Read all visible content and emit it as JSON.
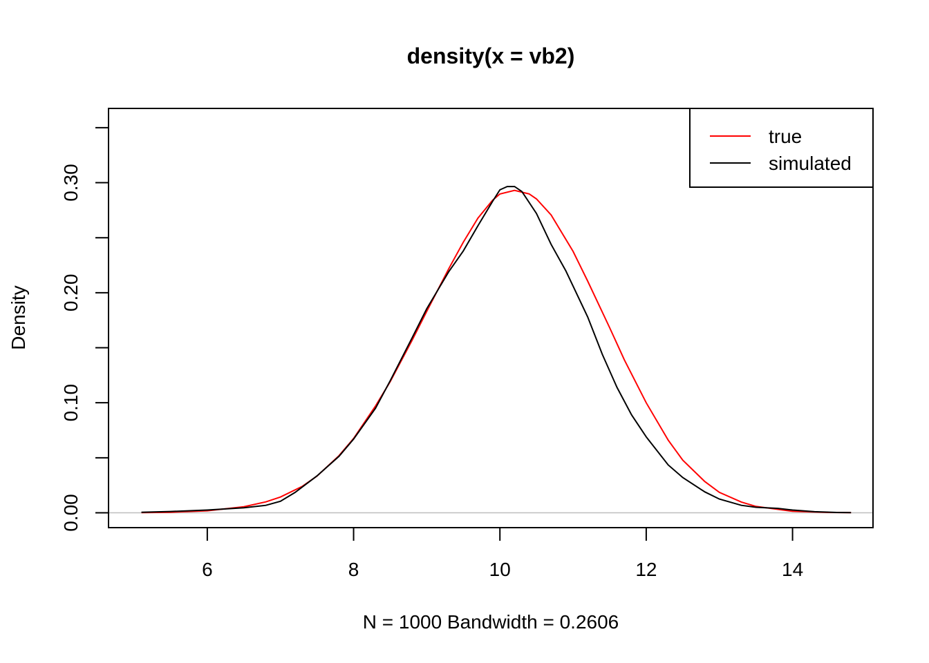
{
  "chart_data": {
    "type": "line",
    "title": "density(x = vb2)",
    "xlabel": "N = 1000   Bandwidth = 0.2606",
    "ylabel": "Density",
    "xlim": [
      4.65,
      15.1
    ],
    "ylim": [
      -0.0135,
      0.3675
    ],
    "x_ticks": [
      6,
      8,
      10,
      12,
      14
    ],
    "x_tick_labels": [
      "6",
      "8",
      "10",
      "12",
      "14"
    ],
    "y_ticks": [
      0,
      0.05,
      0.1,
      0.15,
      0.2,
      0.25,
      0.3,
      0.35
    ],
    "y_tick_labels": [
      "0.00",
      "",
      "0.10",
      "",
      "0.20",
      "",
      "0.30",
      ""
    ],
    "grid": false,
    "baseline": 0,
    "legend": {
      "position": "top-right",
      "entries": [
        {
          "label": "true",
          "color": "#FF0000"
        },
        {
          "label": "simulated",
          "color": "#000000"
        }
      ]
    },
    "series": [
      {
        "name": "true",
        "color": "#FF0000",
        "x": [
          5.1,
          5.5,
          6.0,
          6.5,
          6.8,
          7.0,
          7.3,
          7.5,
          7.8,
          8.0,
          8.3,
          8.5,
          8.8,
          9.0,
          9.3,
          9.5,
          9.7,
          9.9,
          10.0,
          10.2,
          10.4,
          10.5,
          10.7,
          11.0,
          11.2,
          11.5,
          11.7,
          12.0,
          12.3,
          12.5,
          12.8,
          13.0,
          13.3,
          13.5,
          14.0,
          14.5,
          14.8
        ],
        "y": [
          0.0002,
          0.0005,
          0.0018,
          0.0055,
          0.0099,
          0.0143,
          0.0241,
          0.0334,
          0.0519,
          0.0676,
          0.0971,
          0.1192,
          0.1568,
          0.1831,
          0.2217,
          0.246,
          0.2679,
          0.284,
          0.2897,
          0.293,
          0.2898,
          0.2853,
          0.2707,
          0.2376,
          0.2106,
          0.1682,
          0.1391,
          0.1,
          0.066,
          0.0478,
          0.0284,
          0.0186,
          0.0098,
          0.0058,
          0.0014,
          0.0003,
          0.0001
        ]
      },
      {
        "name": "simulated",
        "color": "#000000",
        "x": [
          5.1,
          5.5,
          6.0,
          6.5,
          6.8,
          7.0,
          7.2,
          7.5,
          7.8,
          8.0,
          8.3,
          8.5,
          8.8,
          9.0,
          9.3,
          9.5,
          9.7,
          9.9,
          10.0,
          10.1,
          10.2,
          10.3,
          10.5,
          10.7,
          10.9,
          11.0,
          11.2,
          11.4,
          11.6,
          11.8,
          12.0,
          12.3,
          12.5,
          12.8,
          13.0,
          13.3,
          13.5,
          13.8,
          14.0,
          14.3,
          14.6,
          14.8
        ],
        "y": [
          0.0005,
          0.0012,
          0.0025,
          0.0045,
          0.0068,
          0.0105,
          0.0185,
          0.0335,
          0.0513,
          0.067,
          0.095,
          0.12,
          0.159,
          0.1855,
          0.219,
          0.238,
          0.261,
          0.283,
          0.2935,
          0.2965,
          0.2965,
          0.292,
          0.272,
          0.244,
          0.22,
          0.206,
          0.178,
          0.144,
          0.114,
          0.089,
          0.069,
          0.0435,
          0.032,
          0.019,
          0.0125,
          0.0068,
          0.005,
          0.004,
          0.0025,
          0.001,
          0.0003,
          0.0002
        ]
      }
    ]
  }
}
